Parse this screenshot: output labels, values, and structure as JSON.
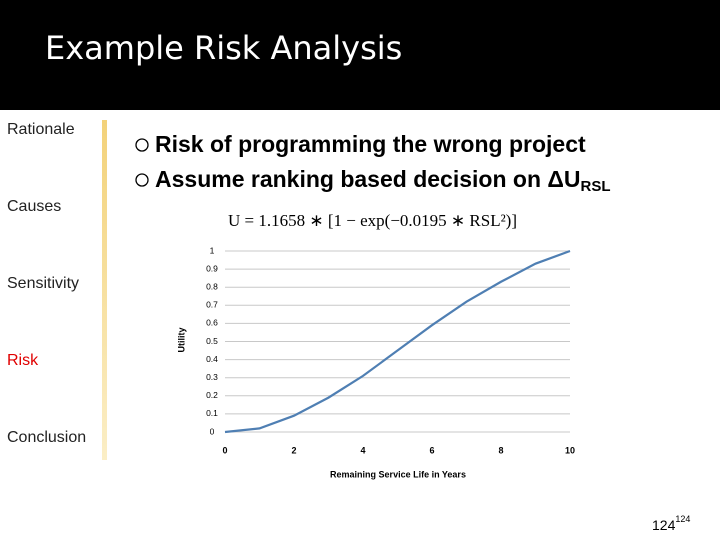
{
  "header": {
    "title": "Example Risk Analysis"
  },
  "sidebar": {
    "items": [
      "Rationale",
      "Causes",
      "Sensitivity",
      "Risk",
      "Conclusion"
    ],
    "active_index": 3,
    "active_color": "#e00000"
  },
  "bullets": [
    {
      "text": "Risk of programming the wrong project"
    },
    {
      "text": "Assume ranking based decision on ΔU",
      "subscript": "RSL"
    }
  ],
  "chart_data": {
    "type": "line",
    "title": "U = 1.1658 ∗ [1 − exp(−0.0195 ∗ RSL²)]",
    "x_label": "Remaining Service Life in Years",
    "y_label": "Utility",
    "x": [
      0,
      1,
      2,
      3,
      4,
      5,
      6,
      7,
      8,
      9,
      10
    ],
    "series": [
      {
        "name": "U",
        "color": "#4f7fb3",
        "values": [
          0,
          0.02,
          0.09,
          0.19,
          0.31,
          0.45,
          0.59,
          0.72,
          0.83,
          0.93,
          1.0
        ]
      }
    ],
    "xlim": [
      0,
      10
    ],
    "xticks": [
      0,
      2,
      4,
      6,
      8,
      10
    ],
    "ylim": [
      0,
      1
    ],
    "yticks": [
      0,
      0.1,
      0.2,
      0.3,
      0.4,
      0.5,
      0.6,
      0.7,
      0.8,
      0.9,
      1
    ],
    "grid": true
  },
  "footer": {
    "number": "124",
    "superscript": "124"
  }
}
